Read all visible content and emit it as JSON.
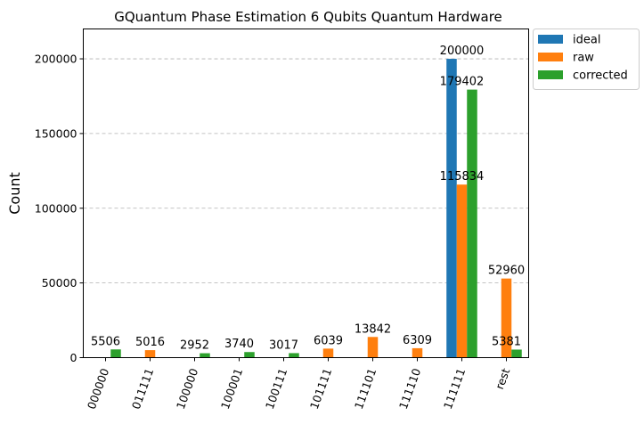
{
  "chart_data": {
    "type": "bar",
    "title": "GQuantum Phase Estimation 6 Qubits Quantum Hardware",
    "xlabel": "",
    "ylabel": "Count",
    "ylim": [
      0,
      220000
    ],
    "yticks": [
      0,
      50000,
      100000,
      150000,
      200000
    ],
    "grid": true,
    "legend_position": "outside-top-right",
    "categories": [
      "000000",
      "011111",
      "100000",
      "100001",
      "100111",
      "101111",
      "111101",
      "111110",
      "111111",
      "rest"
    ],
    "series": [
      {
        "name": "ideal",
        "color": "#1f77b4",
        "values": [
          0,
          0,
          0,
          0,
          0,
          0,
          0,
          0,
          200000,
          0
        ],
        "labels": [
          "",
          "",
          "",
          "",
          "",
          "",
          "",
          "",
          "200000",
          ""
        ]
      },
      {
        "name": "raw",
        "color": "#ff7f0e",
        "values": [
          0,
          5016,
          0,
          0,
          0,
          6039,
          13842,
          6309,
          115834,
          52960
        ],
        "labels": [
          "",
          "5016",
          "",
          "",
          "",
          "6039",
          "13842",
          "6309",
          "115834",
          "52960"
        ]
      },
      {
        "name": "corrected",
        "color": "#2ca02c",
        "values": [
          5506,
          0,
          2952,
          3740,
          3017,
          0,
          0,
          0,
          179402,
          5381
        ],
        "labels": [
          "5506",
          "",
          "2952",
          "3740",
          "3017",
          "",
          "",
          "",
          "179402",
          "5381"
        ]
      }
    ]
  }
}
